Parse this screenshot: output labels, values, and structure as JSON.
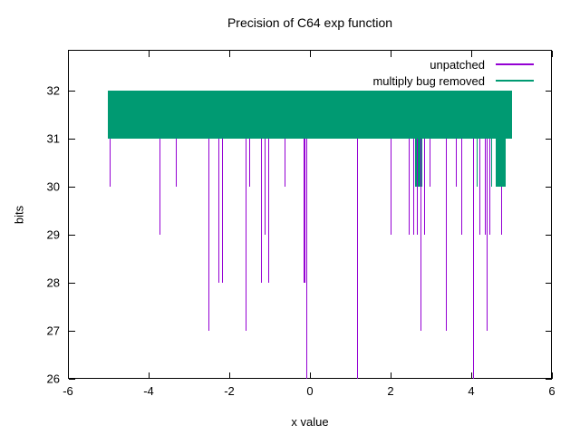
{
  "chart_data": {
    "type": "bar",
    "subtype": "impulse-band-plot",
    "title": "Precision of C64 exp function",
    "xlabel": "x value",
    "ylabel": "bits",
    "xlim": [
      -6,
      6
    ],
    "ylim": [
      26,
      32.85
    ],
    "xticks": [
      -6,
      -4,
      -2,
      0,
      2,
      4,
      6
    ],
    "yticks": [
      26,
      27,
      28,
      29,
      30,
      31,
      32
    ],
    "grid": false,
    "spike_top": 31,
    "legend": {
      "position": "top-right",
      "entries": [
        {
          "label": "unpatched",
          "color": "#9400d3"
        },
        {
          "label": "multiply bug removed",
          "color": "#009a72"
        }
      ]
    },
    "series": [
      {
        "name": "unpatched",
        "color": "#9400d3",
        "band": {
          "x0": -5.02,
          "x1": 5.01,
          "y0": 31,
          "y1": 32
        },
        "spikes": [
          {
            "x": -4.97,
            "bits": 30
          },
          {
            "x": -3.74,
            "bits": 29
          },
          {
            "x": -3.33,
            "bits": 30
          },
          {
            "x": -2.51,
            "bits": 27
          },
          {
            "x": -2.28,
            "bits": 28
          },
          {
            "x": -2.19,
            "bits": 28
          },
          {
            "x": -1.6,
            "bits": 27
          },
          {
            "x": -1.51,
            "bits": 30
          },
          {
            "x": -1.22,
            "bits": 28
          },
          {
            "x": -1.12,
            "bits": 29
          },
          {
            "x": -1.03,
            "bits": 28
          },
          {
            "x": -0.62,
            "bits": 30
          },
          {
            "x": -0.155,
            "bits": 28
          },
          {
            "x": -0.125,
            "bits": 28
          },
          {
            "x": -0.1,
            "bits": 26
          },
          {
            "x": 1.16,
            "bits": 26
          },
          {
            "x": 2.0,
            "bits": 29
          },
          {
            "x": 2.46,
            "bits": 29
          },
          {
            "x": 2.57,
            "bits": 29
          },
          {
            "x": 2.84,
            "bits": 29
          },
          {
            "x": 2.97,
            "bits": 30
          },
          {
            "x": 3.37,
            "bits": 27
          },
          {
            "x": 3.62,
            "bits": 30
          },
          {
            "x": 3.76,
            "bits": 29
          },
          {
            "x": 4.04,
            "bits": 26
          },
          {
            "x": 4.21,
            "bits": 29
          },
          {
            "x": 4.34,
            "bits": 29
          },
          {
            "x": 4.38,
            "bits": 27
          },
          {
            "x": 4.45,
            "bits": 29
          },
          {
            "x": 4.75,
            "bits": 29
          }
        ],
        "front_spikes": [
          {
            "x": 2.66,
            "bits": 29
          },
          {
            "x": 2.75,
            "bits": 27
          }
        ]
      },
      {
        "name": "multiply bug removed",
        "color": "#009a72",
        "band": {
          "x0": -5.02,
          "x1": 5.01,
          "y0": 31,
          "y1": 32
        },
        "dips": [
          {
            "x0": 2.61,
            "x1": 2.79,
            "y0": 30,
            "y1": 32
          },
          {
            "x0": 4.6,
            "x1": 4.86,
            "y0": 30,
            "y1": 32
          }
        ],
        "spikes": [
          {
            "x": 4.13,
            "bits": 30
          },
          {
            "x": 4.49,
            "bits": 30
          }
        ]
      }
    ]
  }
}
